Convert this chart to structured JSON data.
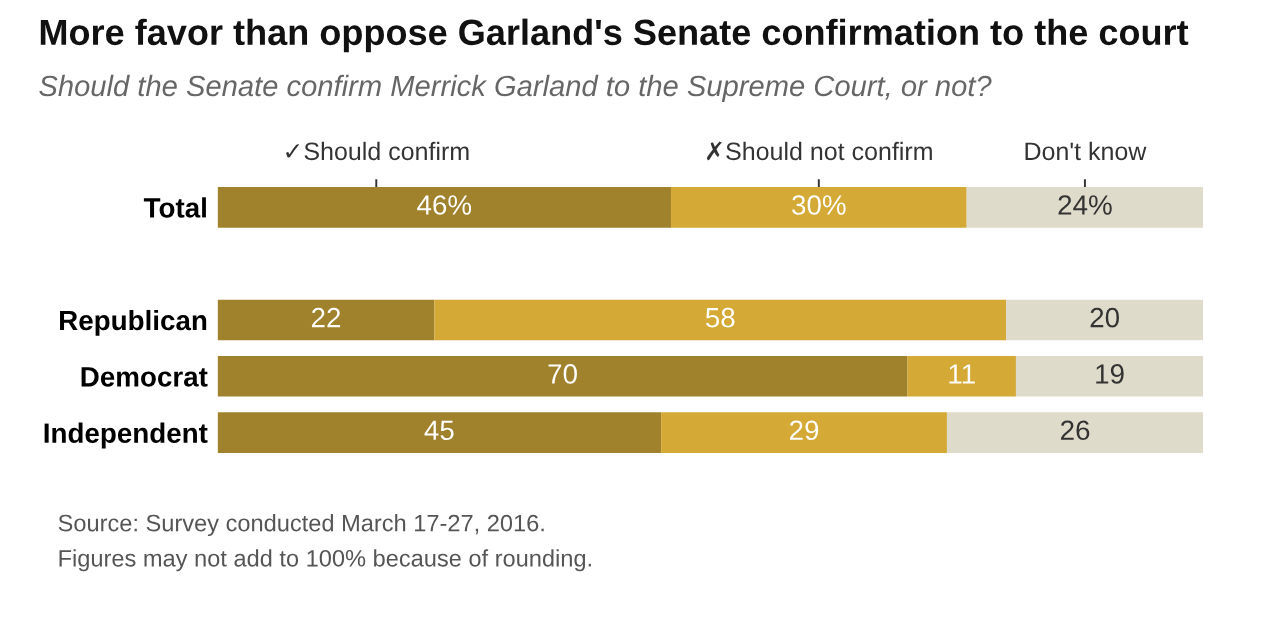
{
  "chart_data": {
    "type": "bar",
    "orientation": "horizontal",
    "stacked": true,
    "title": "More favor than oppose Garland's Senate confirmation to the court",
    "subtitle": "Should the Senate confirm Merrick Garland to the Supreme Court, or not?",
    "categories": [
      "Total",
      null,
      "Republican",
      "Democrat",
      "Independent"
    ],
    "series": [
      {
        "name": "✓Should confirm",
        "color": "#a1822c",
        "values": [
          46,
          null,
          22,
          70,
          45
        ],
        "value_labels": [
          "46%",
          null,
          "22",
          "70",
          "45"
        ]
      },
      {
        "name": "✗Should not confirm",
        "color": "#d4a935",
        "values": [
          30,
          null,
          58,
          11,
          29
        ],
        "value_labels": [
          "30%",
          null,
          "58",
          "11",
          "29"
        ]
      },
      {
        "name": "Don't know",
        "color": "#dfdbca",
        "values": [
          24,
          null,
          20,
          19,
          26
        ],
        "value_labels": [
          "24%",
          null,
          "20",
          "19",
          "26"
        ]
      }
    ],
    "legend": false,
    "annotations": [
      "Source: Survey conducted March 17-27, 2016.",
      "Figures may not add to 100% because of rounding."
    ]
  }
}
